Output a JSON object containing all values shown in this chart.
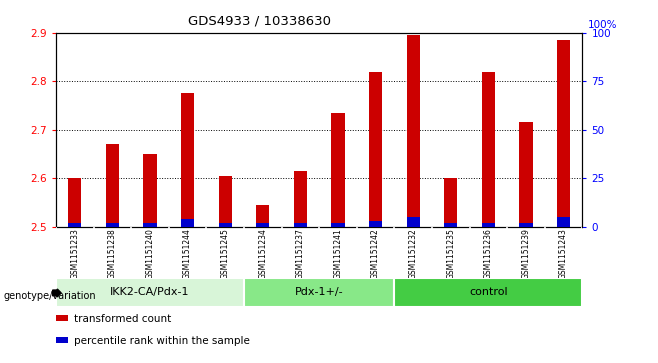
{
  "title": "GDS4933 / 10338630",
  "samples": [
    "GSM1151233",
    "GSM1151238",
    "GSM1151240",
    "GSM1151244",
    "GSM1151245",
    "GSM1151234",
    "GSM1151237",
    "GSM1151241",
    "GSM1151242",
    "GSM1151232",
    "GSM1151235",
    "GSM1151236",
    "GSM1151239",
    "GSM1151243"
  ],
  "transformed_count": [
    2.6,
    2.67,
    2.65,
    2.775,
    2.605,
    2.545,
    2.615,
    2.735,
    2.82,
    2.895,
    2.6,
    2.82,
    2.715,
    2.885
  ],
  "percentile_rank": [
    2,
    2,
    2,
    4,
    2,
    2,
    2,
    2,
    3,
    5,
    2,
    2,
    2,
    5
  ],
  "groups": [
    {
      "label": "IKK2-CA/Pdx-1",
      "start": 0,
      "end": 5,
      "color": "#d8f5d8"
    },
    {
      "label": "Pdx-1+/-",
      "start": 5,
      "end": 9,
      "color": "#88e888"
    },
    {
      "label": "control",
      "start": 9,
      "end": 14,
      "color": "#44cc44"
    }
  ],
  "ylim_left": [
    2.5,
    2.9
  ],
  "ylim_right": [
    0,
    100
  ],
  "yticks_left": [
    2.5,
    2.6,
    2.7,
    2.8,
    2.9
  ],
  "yticks_right": [
    0,
    25,
    50,
    75,
    100
  ],
  "bar_color_red": "#cc0000",
  "bar_color_blue": "#0000cc",
  "sample_bg": "#d0d0d0",
  "legend_red": "transformed count",
  "legend_blue": "percentile rank within the sample",
  "genotype_label": "genotype/variation"
}
